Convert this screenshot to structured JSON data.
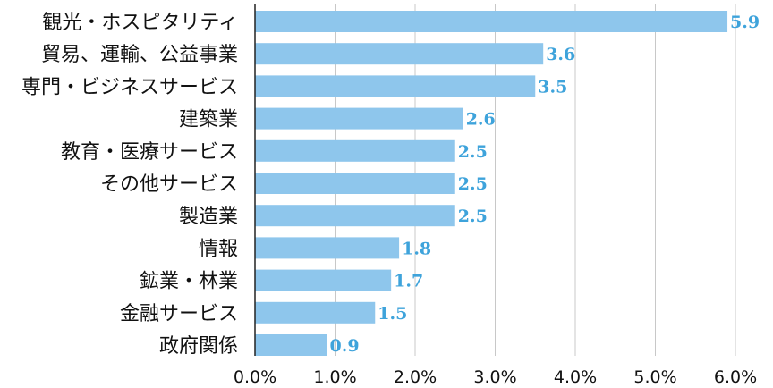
{
  "chart_data": {
    "type": "bar",
    "orientation": "horizontal",
    "categories": [
      "観光・ホスピタリティ",
      "貿易、運輸、公益事業",
      "専門・ビジネスサービス",
      "建築業",
      "教育・医療サービス",
      "その他サービス",
      "製造業",
      "情報",
      "鉱業・林業",
      "金融サービス",
      "政府関係"
    ],
    "values": [
      5.9,
      3.6,
      3.5,
      2.6,
      2.5,
      2.5,
      2.5,
      1.8,
      1.7,
      1.5,
      0.9
    ],
    "value_labels": [
      "5.9",
      "3.6",
      "3.5",
      "2.6",
      "2.5",
      "2.5",
      "2.5",
      "1.8",
      "1.7",
      "1.5",
      "0.9"
    ],
    "xticks": [
      "0.0%",
      "1.0%",
      "2.0%",
      "3.0%",
      "4.0%",
      "5.0%",
      "6.0%"
    ],
    "xlim": [
      0,
      6
    ],
    "grid": true,
    "colors": {
      "bar": "#8ec6ec",
      "label": "#3ea3db",
      "grid": "#c8c8c8",
      "axis": "#222222"
    }
  }
}
